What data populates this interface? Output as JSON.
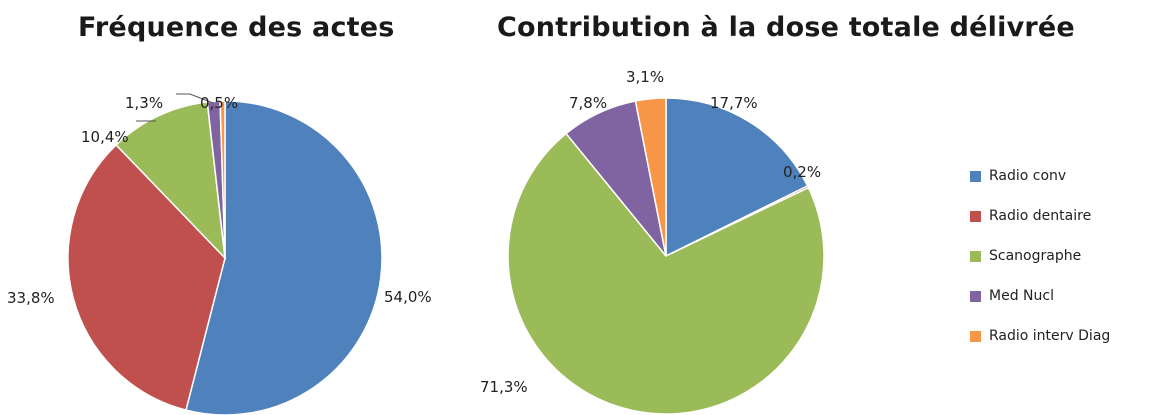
{
  "colors": {
    "Radio conv": "#4f81bd",
    "Radio dentaire": "#c0504d",
    "Scanographe": "#9bbb59",
    "Med Nucl": "#8064a2",
    "Radio interv Diag": "#f79646"
  },
  "chart_data": [
    {
      "type": "pie",
      "title": "Fréquence des actes",
      "categories": [
        "Radio conv",
        "Radio dentaire",
        "Scanographe",
        "Med Nucl",
        "Radio interv Diag"
      ],
      "values": [
        54.0,
        33.8,
        10.4,
        1.3,
        0.5
      ],
      "labels": [
        "54,0%",
        "33,8%",
        "10,4%",
        "1,3%",
        "0,5%"
      ],
      "start": "top",
      "direction": "clockwise"
    },
    {
      "type": "pie",
      "title": "Contribution  à la dose totale délivrée",
      "categories": [
        "Radio conv",
        "Radio dentaire",
        "Scanographe",
        "Med Nucl",
        "Radio interv Diag"
      ],
      "values": [
        17.7,
        0.2,
        71.3,
        7.8,
        3.1
      ],
      "labels": [
        "17,7%",
        "0,2%",
        "71,3%",
        "7,8%",
        "3,1%"
      ],
      "start": "top",
      "direction": "clockwise"
    }
  ],
  "legend": {
    "placement": "right",
    "items": [
      "Radio conv",
      "Radio dentaire",
      "Scanographe",
      "Med Nucl",
      "Radio interv Diag"
    ]
  }
}
